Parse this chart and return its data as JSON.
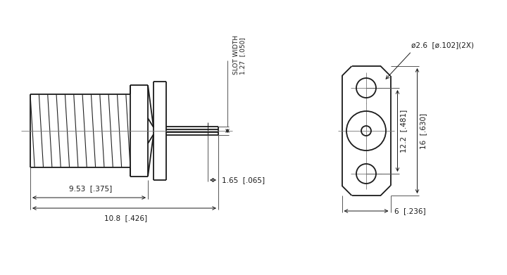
{
  "bg_color": "#ffffff",
  "line_color": "#1a1a1a",
  "text_color": "#1a1a1a",
  "lw": 1.3,
  "lw_thin": 0.7,
  "lw_dim": 0.7,
  "fontsize": 7.5
}
